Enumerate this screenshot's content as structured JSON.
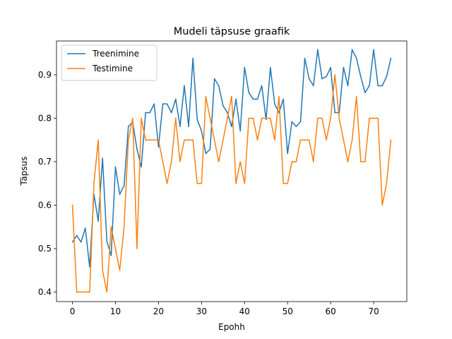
{
  "chart_data": {
    "type": "line",
    "title": "Mudeli täpsuse graafik",
    "xlabel": "Epohh",
    "ylabel": "Täpsus",
    "xlim": [
      -3.7,
      77.7
    ],
    "ylim": [
      0.378,
      0.978
    ],
    "xticks": [
      0,
      10,
      20,
      30,
      40,
      50,
      60,
      70
    ],
    "yticks": [
      0.4,
      0.5,
      0.6,
      0.7,
      0.8,
      0.9
    ],
    "ytick_labels": [
      "0.4",
      "0.5",
      "0.6",
      "0.7",
      "0.8",
      "0.9"
    ],
    "grid": false,
    "legend_position": "upper-left",
    "x": [
      0,
      1,
      2,
      3,
      4,
      5,
      6,
      7,
      8,
      9,
      10,
      11,
      12,
      13,
      14,
      15,
      16,
      17,
      18,
      19,
      20,
      21,
      22,
      23,
      24,
      25,
      26,
      27,
      28,
      29,
      30,
      31,
      32,
      33,
      34,
      35,
      36,
      37,
      38,
      39,
      40,
      41,
      42,
      43,
      44,
      45,
      46,
      47,
      48,
      49,
      50,
      51,
      52,
      53,
      54,
      55,
      56,
      57,
      58,
      59,
      60,
      61,
      62,
      63,
      64,
      65,
      66,
      67,
      68,
      69,
      70,
      71,
      72,
      73,
      74
    ],
    "series": [
      {
        "name": "Treenimine",
        "color": "#1f77b4",
        "values": [
          0.515,
          0.53,
          0.515,
          0.547,
          0.458,
          0.625,
          0.563,
          0.708,
          0.517,
          0.484,
          0.688,
          0.625,
          0.645,
          0.781,
          0.791,
          0.729,
          0.688,
          0.813,
          0.813,
          0.833,
          0.734,
          0.833,
          0.833,
          0.813,
          0.844,
          0.781,
          0.875,
          0.781,
          0.938,
          0.797,
          0.771,
          0.719,
          0.729,
          0.891,
          0.875,
          0.829,
          0.813,
          0.781,
          0.844,
          0.771,
          0.917,
          0.859,
          0.844,
          0.844,
          0.875,
          0.797,
          0.917,
          0.833,
          0.813,
          0.844,
          0.719,
          0.792,
          0.781,
          0.792,
          0.938,
          0.891,
          0.875,
          0.958,
          0.891,
          0.896,
          0.917,
          0.813,
          0.813,
          0.917,
          0.875,
          0.958,
          0.938,
          0.896,
          0.859,
          0.875,
          0.958,
          0.875,
          0.875,
          0.896,
          0.938
        ]
      },
      {
        "name": "Testimine",
        "color": "#ff7f0e",
        "values": [
          0.6,
          0.4,
          0.4,
          0.4,
          0.4,
          0.65,
          0.75,
          0.45,
          0.4,
          0.55,
          0.5,
          0.45,
          0.55,
          0.75,
          0.8,
          0.5,
          0.8,
          0.75,
          0.75,
          0.75,
          0.75,
          0.7,
          0.65,
          0.7,
          0.8,
          0.7,
          0.75,
          0.75,
          0.75,
          0.65,
          0.65,
          0.85,
          0.8,
          0.75,
          0.7,
          0.75,
          0.8,
          0.85,
          0.65,
          0.7,
          0.65,
          0.8,
          0.8,
          0.75,
          0.8,
          0.8,
          0.8,
          0.75,
          0.85,
          0.65,
          0.65,
          0.7,
          0.7,
          0.75,
          0.75,
          0.75,
          0.7,
          0.8,
          0.8,
          0.75,
          0.8,
          0.9,
          0.8,
          0.75,
          0.7,
          0.75,
          0.85,
          0.7,
          0.7,
          0.8,
          0.8,
          0.8,
          0.6,
          0.65,
          0.75
        ]
      }
    ]
  }
}
